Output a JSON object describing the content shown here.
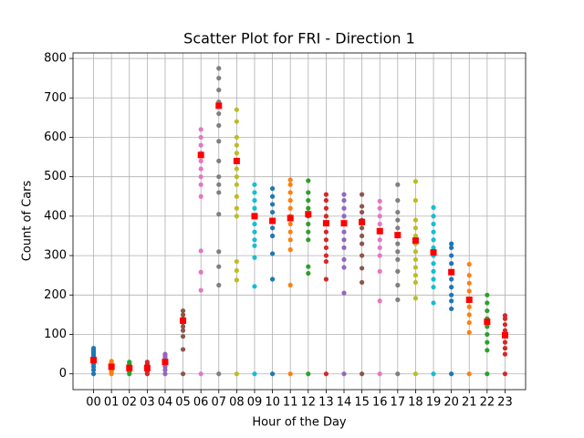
{
  "chart_data": {
    "type": "scatter",
    "title": "Scatter Plot for FRI - Direction 1",
    "x_label": "Hour of the Day",
    "y_label": "Count of Cars",
    "categories": [
      "00",
      "01",
      "02",
      "03",
      "04",
      "05",
      "06",
      "07",
      "08",
      "09",
      "10",
      "11",
      "12",
      "13",
      "14",
      "15",
      "16",
      "17",
      "18",
      "19",
      "20",
      "21",
      "22",
      "23"
    ],
    "colors": [
      "#1f77b4",
      "#ff7f0e",
      "#2ca02c",
      "#d62728",
      "#9467bd",
      "#8c564b",
      "#e377c2",
      "#7f7f7f",
      "#bcbd22",
      "#17becf",
      "#1f77b4",
      "#ff7f0e",
      "#2ca02c",
      "#d62728",
      "#9467bd",
      "#8c564b",
      "#e377c2",
      "#7f7f7f",
      "#bcbd22",
      "#17becf",
      "#1f77b4",
      "#ff7f0e",
      "#2ca02c",
      "#d62728"
    ],
    "points": [
      [
        0,
        10,
        18,
        25,
        30,
        35,
        40,
        45,
        50,
        55,
        60,
        65
      ],
      [
        0,
        5,
        10,
        15,
        18,
        20,
        25,
        28,
        32
      ],
      [
        0,
        5,
        10,
        15,
        18,
        22,
        26,
        30
      ],
      [
        0,
        5,
        8,
        12,
        16,
        20,
        25,
        30
      ],
      [
        0,
        10,
        18,
        25,
        30,
        35,
        40,
        45,
        50
      ],
      [
        0,
        62,
        95,
        110,
        120,
        130,
        140,
        150,
        160
      ],
      [
        0,
        212,
        258,
        312,
        450,
        480,
        500,
        520,
        540,
        560,
        580,
        600,
        620
      ],
      [
        0,
        225,
        272,
        310,
        405,
        460,
        480,
        500,
        540,
        590,
        630,
        660,
        690,
        720,
        750,
        775
      ],
      [
        0,
        238,
        262,
        285,
        400,
        420,
        450,
        480,
        500,
        520,
        540,
        560,
        580,
        600,
        640,
        670
      ],
      [
        0,
        222,
        295,
        325,
        340,
        360,
        380,
        400,
        420,
        440,
        460,
        480
      ],
      [
        0,
        240,
        305,
        350,
        370,
        390,
        410,
        430,
        450,
        470
      ],
      [
        0,
        225,
        315,
        340,
        360,
        380,
        400,
        420,
        440,
        460,
        480,
        492
      ],
      [
        0,
        255,
        272,
        340,
        360,
        380,
        400,
        420,
        440,
        460,
        490
      ],
      [
        0,
        240,
        285,
        300,
        320,
        340,
        360,
        380,
        400,
        420,
        440,
        455
      ],
      [
        0,
        205,
        270,
        290,
        320,
        340,
        360,
        380,
        400,
        420,
        440,
        455
      ],
      [
        0,
        232,
        268,
        300,
        330,
        350,
        370,
        390,
        410,
        425,
        455
      ],
      [
        0,
        185,
        260,
        300,
        320,
        340,
        360,
        380,
        400,
        420,
        438
      ],
      [
        0,
        188,
        225,
        260,
        290,
        310,
        330,
        350,
        370,
        390,
        410,
        440,
        480
      ],
      [
        0,
        192,
        232,
        250,
        270,
        290,
        310,
        330,
        350,
        370,
        390,
        440,
        488
      ],
      [
        0,
        180,
        220,
        240,
        260,
        280,
        300,
        320,
        340,
        360,
        380,
        400,
        422
      ],
      [
        0,
        165,
        185,
        200,
        220,
        240,
        260,
        280,
        300,
        320,
        330
      ],
      [
        0,
        105,
        130,
        150,
        170,
        190,
        210,
        230,
        250,
        278
      ],
      [
        0,
        60,
        80,
        100,
        120,
        140,
        160,
        180,
        200
      ],
      [
        0,
        50,
        65,
        80,
        95,
        110,
        125,
        140,
        148
      ]
    ],
    "means": [
      35,
      18,
      15,
      15,
      30,
      135,
      555,
      680,
      540,
      400,
      388,
      395,
      405,
      382,
      382,
      385,
      362,
      352,
      338,
      308,
      258,
      188,
      132,
      98
    ],
    "mean_color": "#ff0000",
    "ylim": [
      -40,
      814
    ],
    "yticks": [
      0,
      100,
      200,
      300,
      400,
      500,
      600,
      700,
      800
    ],
    "grid": true
  }
}
